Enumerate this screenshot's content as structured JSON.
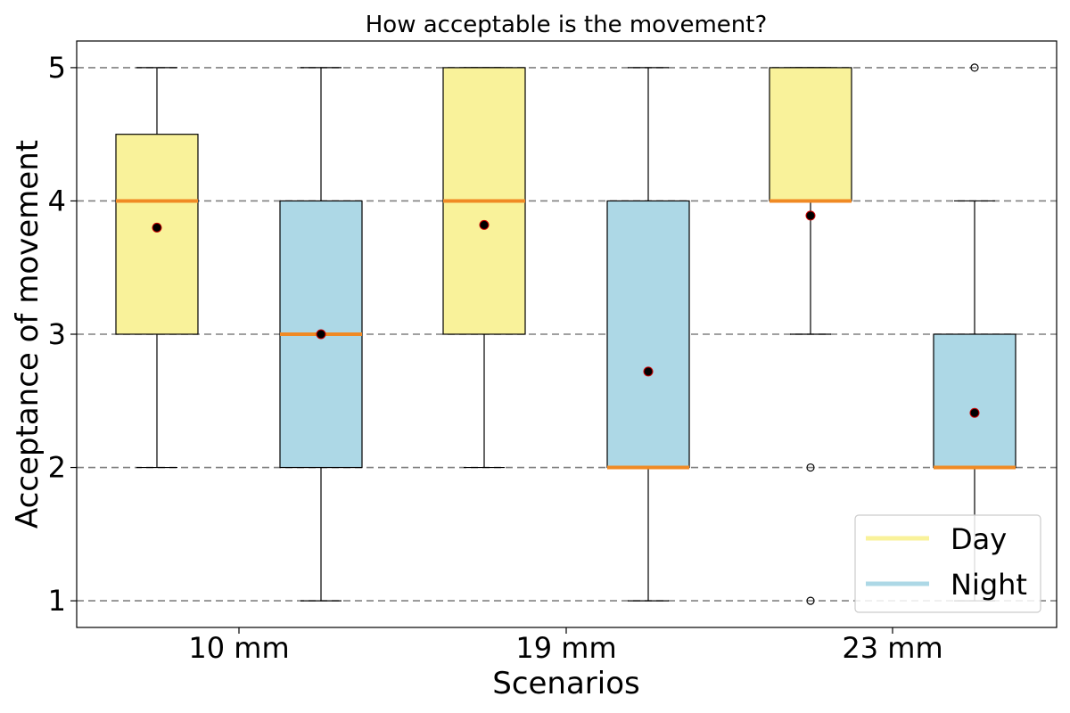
{
  "chart_data": {
    "type": "boxplot",
    "title": "How acceptable is the movement?",
    "xlabel": "Scenarios",
    "ylabel": "Acceptance of movement",
    "ylim": [
      0.8,
      5.2
    ],
    "yticks": [
      1,
      2,
      3,
      4,
      5
    ],
    "grid": "horizontal dashed",
    "legend_position": "bottom-right",
    "categories": [
      "10 mm",
      "19 mm",
      "23 mm"
    ],
    "series": [
      {
        "name": "Day",
        "color": "#f9f29a",
        "boxes": [
          {
            "category": "10 mm",
            "whisker_low": 2,
            "q1": 3,
            "median": 4,
            "q3": 4.5,
            "whisker_high": 5,
            "mean": 3.8,
            "outliers": []
          },
          {
            "category": "19 mm",
            "whisker_low": 2,
            "q1": 3,
            "median": 4,
            "q3": 5,
            "whisker_high": 5,
            "mean": 3.82,
            "outliers": []
          },
          {
            "category": "23 mm",
            "whisker_low": 3,
            "q1": 4,
            "median": 4,
            "q3": 5,
            "whisker_high": 5,
            "mean": 3.89,
            "outliers": [
              2,
              1
            ]
          }
        ]
      },
      {
        "name": "Night",
        "color": "#add8e6",
        "boxes": [
          {
            "category": "10 mm",
            "whisker_low": 1,
            "q1": 2,
            "median": 3,
            "q3": 4,
            "whisker_high": 5,
            "mean": 3.0,
            "outliers": []
          },
          {
            "category": "19 mm",
            "whisker_low": 1,
            "q1": 2,
            "median": 2,
            "q3": 4,
            "whisker_high": 5,
            "mean": 2.72,
            "outliers": []
          },
          {
            "category": "23 mm",
            "whisker_low": 1,
            "q1": 2,
            "median": 2,
            "q3": 3,
            "whisker_high": 4,
            "mean": 2.41,
            "outliers": [
              5
            ]
          }
        ]
      }
    ],
    "median_color": "#f08a24",
    "mean_marker_color": "#000000",
    "mean_marker_edge": "#cc0000"
  }
}
